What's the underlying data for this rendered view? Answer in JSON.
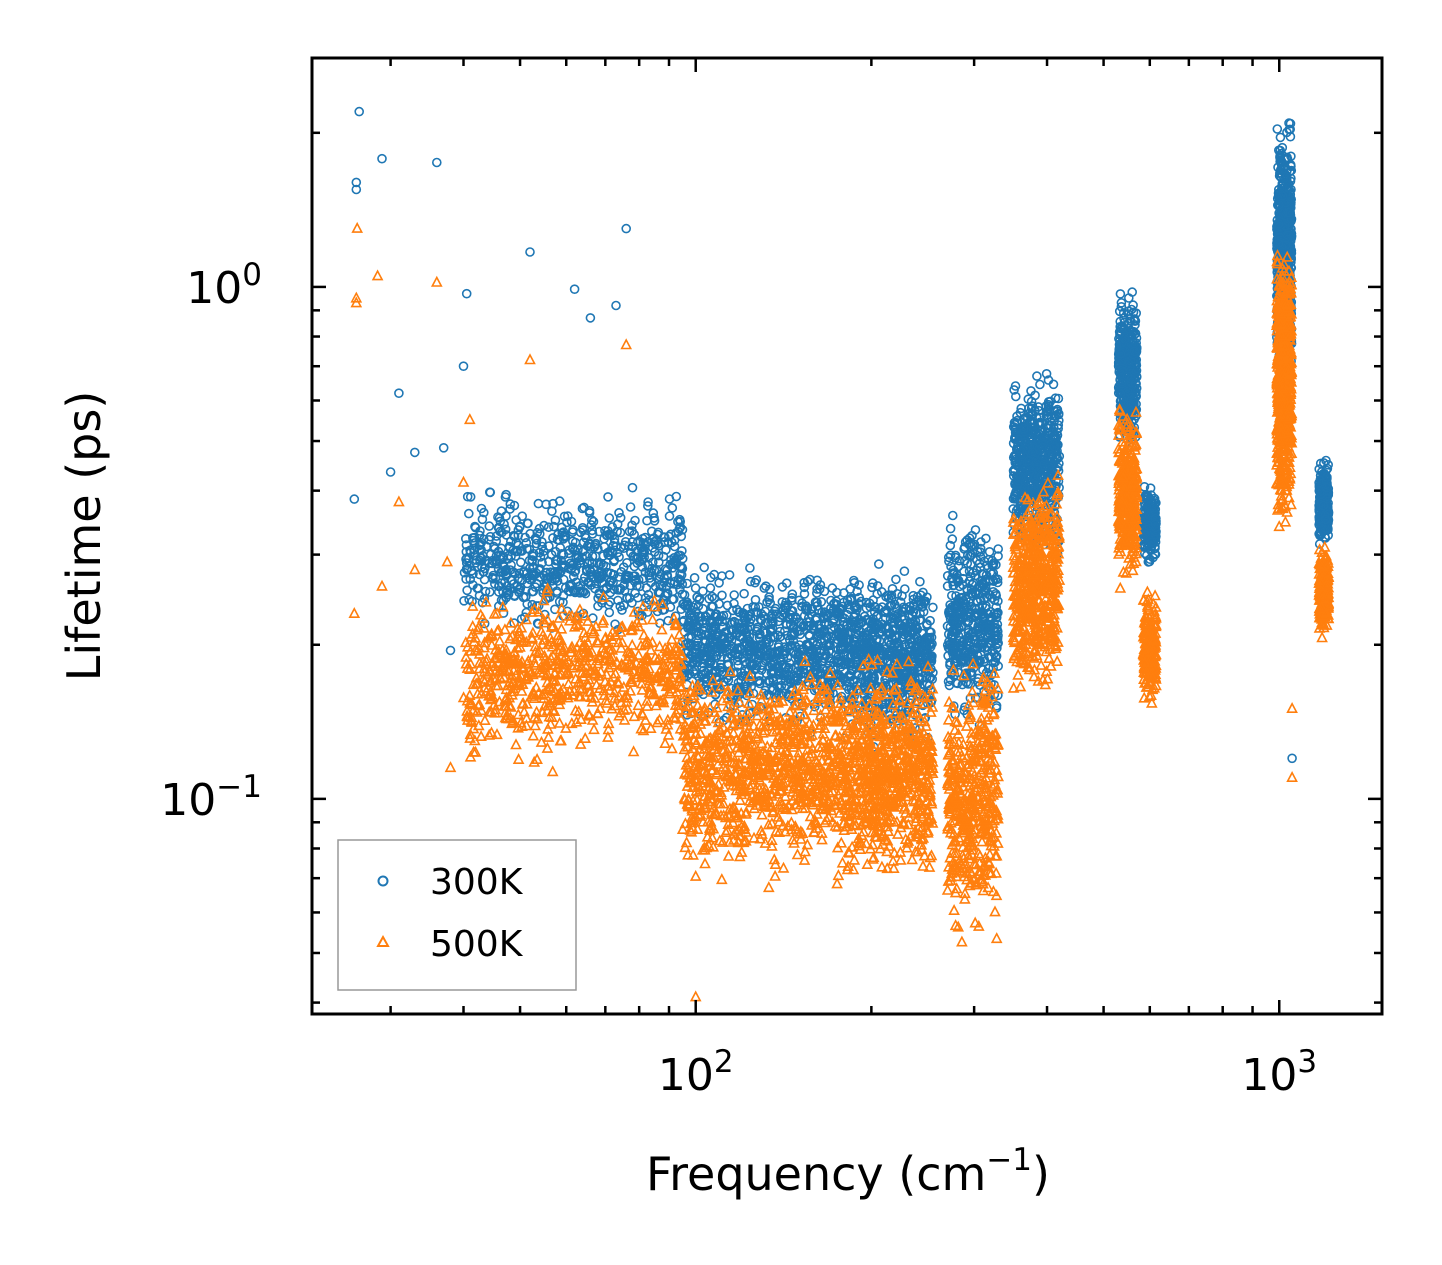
{
  "chart_data": {
    "type": "scatter",
    "xscale": "log",
    "yscale": "log",
    "xlim": [
      22,
      1500
    ],
    "ylim": [
      0.038,
      2.8
    ],
    "xlabel": "Frequency (cm",
    "xlabel_sup": "−1",
    "xlabel_close": ")",
    "ylabel": "Lifetime (ps)",
    "xticks": [
      {
        "value": 100,
        "base": "10",
        "exp": "2"
      },
      {
        "value": 1000,
        "base": "10",
        "exp": "3"
      }
    ],
    "yticks": [
      {
        "value": 0.1,
        "base": "10",
        "exp": "−1"
      },
      {
        "value": 1,
        "base": "10",
        "exp": "0"
      }
    ],
    "legend_position": "lower-left",
    "series": [
      {
        "name": "300K",
        "marker": "circle",
        "color": "#1f77b4",
        "clusters": [
          {
            "x": [
              40,
              95
            ],
            "y": [
              0.2,
              0.42
            ],
            "n": 700
          },
          {
            "x": [
              95,
              180
            ],
            "y": [
              0.13,
              0.3
            ],
            "n": 900
          },
          {
            "x": [
              180,
              255
            ],
            "y": [
              0.12,
              0.3
            ],
            "n": 700
          },
          {
            "x": [
              270,
              330
            ],
            "y": [
              0.13,
              0.38
            ],
            "n": 450
          },
          {
            "x": [
              350,
              420
            ],
            "y": [
              0.28,
              0.72
            ],
            "n": 550
          },
          {
            "x": [
              530,
              570
            ],
            "y": [
              0.45,
              1.05
            ],
            "n": 350
          },
          {
            "x": [
              585,
              615
            ],
            "y": [
              0.28,
              0.43
            ],
            "n": 200
          },
          {
            "x": [
              990,
              1050
            ],
            "y": [
              0.6,
              2.3
            ],
            "n": 650
          },
          {
            "x": [
              1170,
              1215
            ],
            "y": [
              0.3,
              0.48
            ],
            "n": 250
          }
        ],
        "outliers": [
          {
            "x": 26.5,
            "y": 2.2
          },
          {
            "x": 29,
            "y": 1.78
          },
          {
            "x": 36,
            "y": 1.75
          },
          {
            "x": 26.2,
            "y": 1.6
          },
          {
            "x": 26.2,
            "y": 1.55
          },
          {
            "x": 52,
            "y": 1.17
          },
          {
            "x": 76,
            "y": 1.3
          },
          {
            "x": 40.5,
            "y": 0.97
          },
          {
            "x": 62,
            "y": 0.99
          },
          {
            "x": 73,
            "y": 0.92
          },
          {
            "x": 66,
            "y": 0.87
          },
          {
            "x": 40,
            "y": 0.7
          },
          {
            "x": 31,
            "y": 0.62
          },
          {
            "x": 26,
            "y": 0.385
          },
          {
            "x": 30,
            "y": 0.435
          },
          {
            "x": 37,
            "y": 0.485
          },
          {
            "x": 38,
            "y": 0.195
          },
          {
            "x": 33,
            "y": 0.475
          },
          {
            "x": 1052,
            "y": 0.12
          }
        ]
      },
      {
        "name": "500K",
        "marker": "triangle",
        "color": "#ff7f0e",
        "clusters": [
          {
            "x": [
              40,
              95
            ],
            "y": [
              0.11,
              0.27
            ],
            "n": 700
          },
          {
            "x": [
              95,
              180
            ],
            "y": [
              0.065,
              0.2
            ],
            "n": 900
          },
          {
            "x": [
              180,
              255
            ],
            "y": [
              0.065,
              0.2
            ],
            "n": 700
          },
          {
            "x": [
              270,
              330
            ],
            "y": [
              0.05,
              0.2
            ],
            "n": 450
          },
          {
            "x": [
              350,
              420
            ],
            "y": [
              0.15,
              0.45
            ],
            "n": 550
          },
          {
            "x": [
              530,
              570
            ],
            "y": [
              0.25,
              0.6
            ],
            "n": 350
          },
          {
            "x": [
              585,
              615
            ],
            "y": [
              0.15,
              0.26
            ],
            "n": 200
          },
          {
            "x": [
              990,
              1050
            ],
            "y": [
              0.32,
              1.3
            ],
            "n": 650
          },
          {
            "x": [
              1170,
              1215
            ],
            "y": [
              0.2,
              0.32
            ],
            "n": 250
          }
        ],
        "outliers": [
          {
            "x": 26.3,
            "y": 1.3
          },
          {
            "x": 28.5,
            "y": 1.05
          },
          {
            "x": 36,
            "y": 1.02
          },
          {
            "x": 26.2,
            "y": 0.95
          },
          {
            "x": 26.2,
            "y": 0.93
          },
          {
            "x": 52,
            "y": 0.72
          },
          {
            "x": 76,
            "y": 0.77
          },
          {
            "x": 41,
            "y": 0.55
          },
          {
            "x": 31,
            "y": 0.38
          },
          {
            "x": 26,
            "y": 0.23
          },
          {
            "x": 29,
            "y": 0.26
          },
          {
            "x": 33,
            "y": 0.28
          },
          {
            "x": 37.5,
            "y": 0.29
          },
          {
            "x": 38,
            "y": 0.115
          },
          {
            "x": 40,
            "y": 0.415
          },
          {
            "x": 100,
            "y": 0.041
          },
          {
            "x": 1052,
            "y": 0.11
          },
          {
            "x": 1052,
            "y": 0.15
          }
        ]
      }
    ]
  }
}
